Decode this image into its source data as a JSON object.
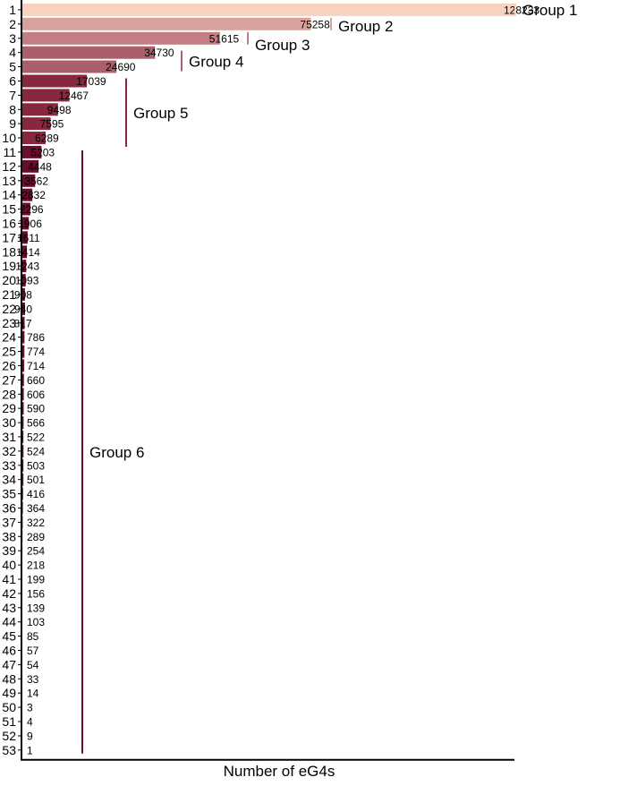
{
  "chart_data": {
    "type": "bar",
    "orientation": "horizontal",
    "xlabel": "Number of eG4s",
    "ylabel": "",
    "xlim": [
      0,
      128233
    ],
    "grid": false,
    "categories": [
      "1",
      "2",
      "3",
      "4",
      "5",
      "6",
      "7",
      "8",
      "9",
      "10",
      "11",
      "12",
      "13",
      "14",
      "15",
      "16",
      "17",
      "18",
      "19",
      "20",
      "21",
      "22",
      "23",
      "24",
      "25",
      "26",
      "27",
      "28",
      "29",
      "30",
      "31",
      "32",
      "33",
      "34",
      "35",
      "36",
      "37",
      "38",
      "39",
      "40",
      "41",
      "42",
      "43",
      "44",
      "45",
      "46",
      "47",
      "48",
      "49",
      "50",
      "51",
      "52",
      "53"
    ],
    "values": [
      128233,
      75258,
      51615,
      34730,
      24690,
      17039,
      12467,
      9498,
      7595,
      6289,
      5203,
      4448,
      3562,
      2832,
      2296,
      1906,
      1611,
      1414,
      1243,
      1093,
      908,
      940,
      817,
      786,
      774,
      714,
      660,
      606,
      590,
      566,
      522,
      524,
      503,
      501,
      416,
      364,
      322,
      289,
      254,
      218,
      199,
      156,
      139,
      103,
      85,
      57,
      54,
      33,
      14,
      3,
      4,
      9,
      1
    ],
    "data_labels": [
      "128233",
      "75258",
      "51615",
      "34730",
      "24690",
      "17039",
      "12467",
      "9498",
      "7595",
      "6289",
      "5203",
      "4448",
      "3562",
      "2832",
      "2296",
      "1906",
      "1611",
      "1414",
      "1243",
      "1093",
      "908",
      "940",
      "817",
      "786",
      "774",
      "714",
      "660",
      "606",
      "590",
      "566",
      "522",
      "524",
      "503",
      "501",
      "416",
      "364",
      "322",
      "289",
      "254",
      "218",
      "199",
      "156",
      "139",
      "103",
      "85",
      "57",
      "54",
      "33",
      "14",
      "3",
      "4",
      "9",
      "1"
    ],
    "groups": [
      {
        "name": "Group 1",
        "start": 1,
        "end": 1,
        "color": "#f8d2be"
      },
      {
        "name": "Group 2",
        "start": 2,
        "end": 2,
        "color": "#d8a19c"
      },
      {
        "name": "Group 3",
        "start": 3,
        "end": 3,
        "color": "#c37e84"
      },
      {
        "name": "Group 4",
        "start": 4,
        "end": 5,
        "color": "#ab5f6a"
      },
      {
        "name": "Group 5",
        "start": 6,
        "end": 10,
        "color": "#88283f"
      },
      {
        "name": "Group 6",
        "start": 11,
        "end": 53,
        "color": "#6b0d2c"
      }
    ]
  }
}
